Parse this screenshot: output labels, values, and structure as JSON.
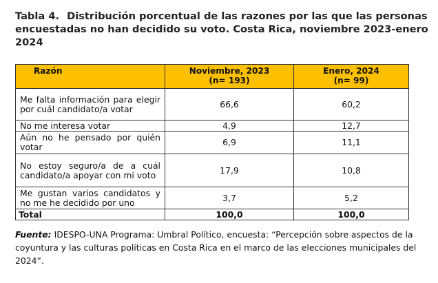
{
  "title": {
    "number": "Tabla 4.",
    "text": "Distribución porcentual de las razones por las que las personas encuestadas no han decidido su voto. Costa Rica, noviembre 2023-enero 2024"
  },
  "table": {
    "headers": {
      "reason": "Razón",
      "nov_line1": "Noviembre, 2023",
      "nov_line2": "(n= 193)",
      "jan_line1": "Enero, 2024",
      "jan_line2": "(n= 99)"
    },
    "rows": [
      {
        "reason": "Me falta información para elegir por cuál candidato/a votar",
        "nov": "66,6",
        "jan": "60,2"
      },
      {
        "reason": "No me interesa votar",
        "nov": "4,9",
        "jan": "12,7"
      },
      {
        "reason": "Aún no he pensado por quién votar",
        "nov": "6,9",
        "jan": "11,1"
      },
      {
        "reason": "No estoy seguro/a de a cuál candidato/a apoyar con mi voto",
        "nov": "17,9",
        "jan": "10,8"
      },
      {
        "reason": "Me gustan varios candidatos y no me he decidido por uno",
        "nov": "3,7",
        "jan": "5,2"
      }
    ],
    "total": {
      "label": "Total",
      "nov": "100,0",
      "jan": "100,0"
    }
  },
  "source": {
    "label": "Fuente:",
    "text": "IDESPO-UNA Programa: Umbral Político, encuesta: “Percepción sobre aspectos de la coyuntura y las culturas políticas en Costa Rica en el marco de las elecciones municipales del 2024”."
  }
}
